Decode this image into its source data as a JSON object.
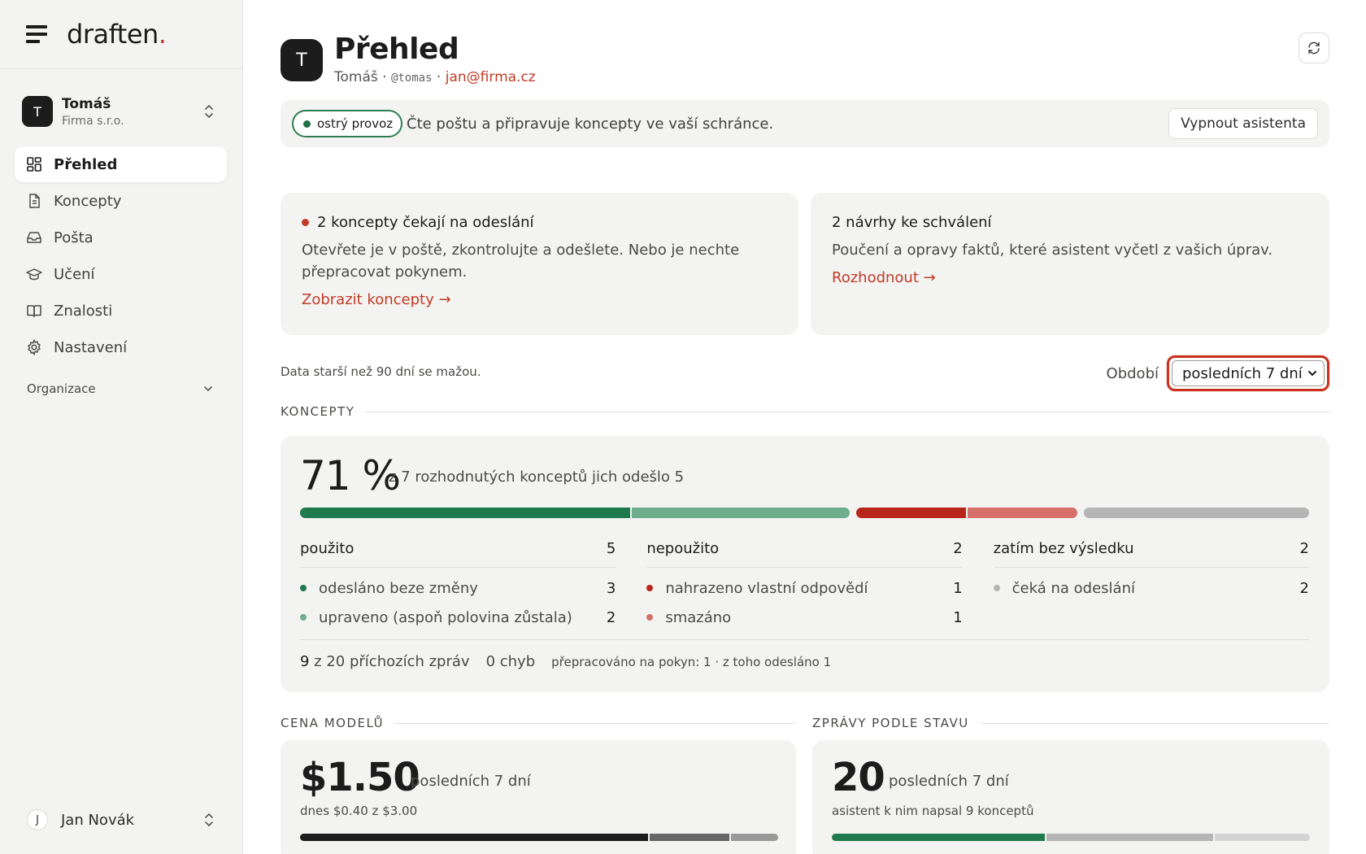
{
  "sidebar": {
    "logo_text": "draften",
    "logo_dot": ".",
    "account": {
      "initial": "T",
      "name": "Tomáš",
      "org": "Firma s.r.o."
    },
    "nav": [
      {
        "label": "Přehled",
        "icon": "dashboard-icon",
        "active": true
      },
      {
        "label": "Koncepty",
        "icon": "document-icon"
      },
      {
        "label": "Pošta",
        "icon": "inbox-icon"
      },
      {
        "label": "Učení",
        "icon": "graduation-cap-icon"
      },
      {
        "label": "Znalosti",
        "icon": "book-icon"
      },
      {
        "label": "Nastavení",
        "icon": "gear-icon"
      }
    ],
    "org_section": "Organizace",
    "user": {
      "initial": "J",
      "name": "Jan Novák"
    }
  },
  "header": {
    "initial": "T",
    "title": "Přehled",
    "name": "Tomáš",
    "sep1": " · ",
    "handle": "@tomas",
    "sep2": " · ",
    "email": "jan@firma.cz"
  },
  "status": {
    "pill_label": "ostrý provoz",
    "text": "Čte poštu a připravuje koncepty ve vaší schránce.",
    "button": "Vypnout asistenta"
  },
  "cards": {
    "drafts": {
      "title": "2 koncepty čekají na odeslání",
      "text": "Otevřete je v poště, zkontrolujte a odešlete. Nebo je nechte přepracovat pokynem.",
      "link": "Zobrazit koncepty →"
    },
    "proposals": {
      "title": "2 návrhy ke schválení",
      "text": "Poučení a opravy faktů, které asistent vyčetl z vašich úprav.",
      "link": "Rozhodnout →"
    }
  },
  "retention_note": "Data starší než 90 dní se mažou.",
  "period": {
    "label": "Období",
    "value": "posledních 7 dní"
  },
  "concepts": {
    "section_title": "KONCEPTY",
    "percent": "71 %",
    "percent_desc": "z 7 rozhodnutých konceptů jich odešlo 5",
    "colors": {
      "green_dark": "#1f7a4c",
      "green_light": "#6fae8c",
      "red_dark": "#b8261b",
      "red_light": "#d47069",
      "gray": "#b5b5b5"
    },
    "columns": [
      {
        "title": "použito",
        "total": "5",
        "rows": [
          {
            "label": "odesláno beze změny",
            "count": "3",
            "color": "#1f7a4c"
          },
          {
            "label": "upraveno (aspoň polovina zůstala)",
            "count": "2",
            "color": "#6fae8c"
          }
        ]
      },
      {
        "title": "nepoužito",
        "total": "2",
        "rows": [
          {
            "label": "nahrazeno vlastní odpovědí",
            "count": "1",
            "color": "#b8261b"
          },
          {
            "label": "smazáno",
            "count": "1",
            "color": "#d47069"
          }
        ]
      },
      {
        "title": "zatím bez výsledku",
        "total": "2",
        "rows": [
          {
            "label": "čeká na odeslání",
            "count": "2",
            "color": "#b5b5b5"
          }
        ]
      }
    ],
    "footer": {
      "incoming_count": "9",
      "incoming_text": " z 20 příchozích zpráv",
      "errors": "0 chyb",
      "rework": "přepracováno na pokyn: 1 · z toho odesláno 1"
    }
  },
  "model_cost": {
    "section_title": "CENA MODELŮ",
    "value": "$1.50",
    "period": "posledních 7 dní",
    "sub": "dnes $0.40 z $3.00"
  },
  "messages": {
    "section_title": "ZPRÁVY PODLE STAVU",
    "value": "20",
    "period": "posledních 7 dní",
    "sub": "asistent k nim napsal 9 konceptů"
  }
}
